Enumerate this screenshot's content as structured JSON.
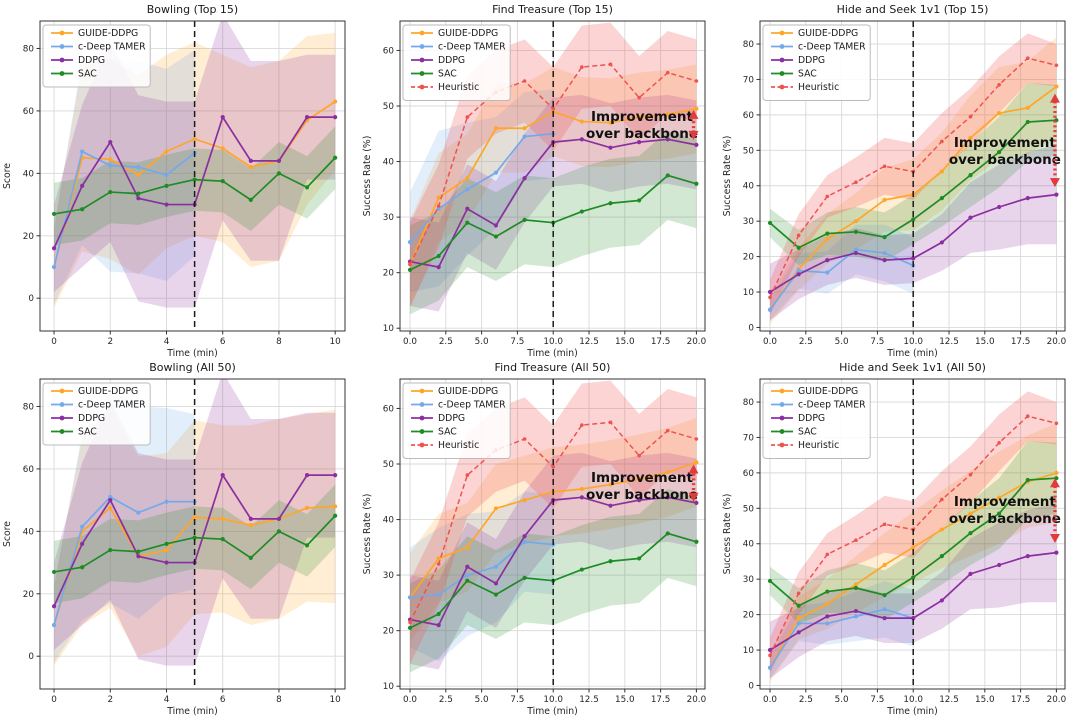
{
  "figure": {
    "background": "#ffffff",
    "palette": {
      "GUIDE-DDPG": "#FFA629",
      "c-Deep TAMER": "#74A9EC",
      "DDPG": "#8B2FA0",
      "SAC": "#1E8B25",
      "Heuristic": "#EF5350"
    },
    "grid_color": "#d9d9d9",
    "spine_color": "#333333",
    "text_color": "#262626",
    "vline_color": "#1a1a1a",
    "annotation_arrow_color": "#E23B3B",
    "annotation_text_color": "#111111"
  },
  "chart_data": [
    {
      "type": "line",
      "title": "Bowling (Top 15)",
      "xlabel": "Time (min)",
      "ylabel": "Score",
      "xlim": [
        -0.5,
        10.35
      ],
      "ylim": [
        -10.5,
        88.8
      ],
      "xticks": [
        0,
        2,
        4,
        6,
        8,
        10
      ],
      "xtick_labels": [
        "0",
        "2",
        "4",
        "6",
        "8",
        "10"
      ],
      "yticks": [
        0,
        20,
        40,
        60,
        80
      ],
      "grid": true,
      "legend_position": "upper-left",
      "vline_x": 5,
      "x": [
        0,
        1,
        2,
        3,
        4,
        5,
        6,
        7,
        8,
        9,
        10
      ],
      "series": [
        {
          "name": "GUIDE-DDPG",
          "color": "#FFA629",
          "dash": false,
          "values": [
            10,
            45,
            44.5,
            39.5,
            47,
            51,
            48,
            42,
            44,
            57,
            63
          ],
          "band": [
            13,
            30,
            32,
            32,
            31,
            31,
            30,
            32,
            32,
            27,
            22
          ]
        },
        {
          "name": "c-Deep TAMER",
          "color": "#74A9EC",
          "dash": false,
          "values": [
            10,
            47,
            42.5,
            42,
            39.5,
            46.5
          ],
          "band": [
            12,
            30,
            34,
            34,
            34,
            33
          ]
        },
        {
          "name": "DDPG",
          "color": "#8B2FA0",
          "dash": false,
          "values": [
            16,
            36,
            50,
            32,
            30,
            30,
            58,
            44,
            44,
            58,
            58
          ],
          "band": [
            14,
            26,
            32,
            33,
            33,
            33,
            33,
            32,
            32,
            20,
            20
          ]
        },
        {
          "name": "SAC",
          "color": "#1E8B25",
          "dash": false,
          "values": [
            27,
            28.5,
            34,
            33.5,
            36,
            38,
            37.5,
            31.5,
            40,
            35.5,
            45
          ],
          "band": 10
        }
      ],
      "annotation": null
    },
    {
      "type": "line",
      "title": "Find Treasure (Top 15)",
      "xlabel": "Time (min)",
      "ylabel": "Success Rate (%)",
      "xlim": [
        -0.7,
        20.6
      ],
      "ylim": [
        9.5,
        65.3
      ],
      "xticks": [
        0,
        2.5,
        5,
        7.5,
        10,
        12.5,
        15,
        17.5,
        20
      ],
      "xtick_labels": [
        "0.0",
        "2.5",
        "5.0",
        "7.5",
        "10.0",
        "12.5",
        "15.0",
        "17.5",
        "20.0"
      ],
      "yticks": [
        10,
        20,
        30,
        40,
        50,
        60
      ],
      "grid": true,
      "legend_position": "upper-left",
      "vline_x": 10,
      "x": [
        0,
        2,
        4,
        6,
        8,
        10,
        12,
        14,
        16,
        18,
        20
      ],
      "series": [
        {
          "name": "GUIDE-DDPG",
          "color": "#FFA629",
          "dash": false,
          "values": [
            21.5,
            33.5,
            37,
            46,
            46,
            49,
            47.2,
            47,
            48,
            48.5,
            49.5
          ],
          "band": 8
        },
        {
          "name": "c-Deep TAMER",
          "color": "#74A9EC",
          "dash": false,
          "values": [
            25.5,
            31.5,
            35,
            38,
            44.5,
            45
          ],
          "band": [
            9,
            14,
            12,
            10,
            8,
            8
          ]
        },
        {
          "name": "DDPG",
          "color": "#8B2FA0",
          "dash": false,
          "values": [
            22,
            21,
            31.5,
            28.5,
            37,
            43.5,
            44,
            42.5,
            43.5,
            44,
            43
          ],
          "band": 8
        },
        {
          "name": "SAC",
          "color": "#1E8B25",
          "dash": false,
          "values": [
            20.5,
            23,
            29,
            26.5,
            29.5,
            29,
            31,
            32.5,
            33,
            37.5,
            36
          ],
          "band": 8
        },
        {
          "name": "Heuristic",
          "color": "#EF5350",
          "dash": true,
          "values": [
            21.5,
            32,
            48,
            52.5,
            54.5,
            49.5,
            57,
            57.5,
            51.5,
            56,
            54.5
          ],
          "band": 7.5,
          "band_opacity": 0.25
        }
      ],
      "annotation": {
        "lines": [
          "Improvement",
          "over backbone"
        ],
        "text_x": 16.2,
        "text_y": 47.3,
        "arrow_x": 19.8,
        "arrow_y_low": 43.9,
        "arrow_y_high": 49.3
      }
    },
    {
      "type": "line",
      "title": "Hide and Seek 1v1 (Top 15)",
      "xlabel": "Time (min)",
      "ylabel": "Success Rate (%)",
      "xlim": [
        -0.7,
        20.6
      ],
      "ylim": [
        -1,
        86.5
      ],
      "xticks": [
        0,
        2.5,
        5,
        7.5,
        10,
        12.5,
        15,
        17.5,
        20
      ],
      "xtick_labels": [
        "0.0",
        "2.5",
        "5.0",
        "7.5",
        "10.0",
        "12.5",
        "15.0",
        "17.5",
        "20.0"
      ],
      "yticks": [
        0,
        10,
        20,
        30,
        40,
        50,
        60,
        70,
        80
      ],
      "grid": true,
      "legend_position": "upper-left",
      "vline_x": 10,
      "x": [
        0,
        2,
        4,
        6,
        8,
        10,
        12,
        14,
        16,
        18,
        20
      ],
      "series": [
        {
          "name": "GUIDE-DDPG",
          "color": "#FFA629",
          "dash": false,
          "values": [
            5,
            16.5,
            25,
            30,
            36,
            37.5,
            44,
            53.5,
            60.5,
            62,
            68
          ],
          "band": [
            4,
            6,
            7,
            8,
            9,
            10,
            11,
            12,
            13,
            13,
            14
          ]
        },
        {
          "name": "c-Deep TAMER",
          "color": "#74A9EC",
          "dash": false,
          "values": [
            5,
            16,
            15.5,
            22,
            21,
            17.5
          ],
          "band": [
            3,
            5,
            6,
            7,
            8,
            8
          ]
        },
        {
          "name": "DDPG",
          "color": "#8B2FA0",
          "dash": false,
          "values": [
            10,
            15,
            19,
            21,
            19,
            19.5,
            24,
            31,
            34,
            36.5,
            37.5
          ],
          "band": [
            8,
            7,
            7,
            7,
            7,
            7,
            8,
            10,
            12,
            13,
            14
          ]
        },
        {
          "name": "SAC",
          "color": "#1E8B25",
          "dash": false,
          "values": [
            29.5,
            22.5,
            26.5,
            27,
            25.5,
            30.5,
            36.5,
            43,
            49.5,
            58,
            58.5
          ],
          "band": [
            4,
            5,
            6,
            7,
            7,
            7,
            8,
            9,
            10,
            11,
            10
          ]
        },
        {
          "name": "Heuristic",
          "color": "#EF5350",
          "dash": true,
          "values": [
            8.5,
            26,
            37,
            41,
            45.5,
            44,
            52.5,
            59.5,
            68.5,
            76,
            74
          ],
          "band": [
            5,
            6,
            6,
            7,
            8,
            8,
            8,
            8,
            8,
            7,
            6
          ],
          "band_opacity": 0.25
        }
      ],
      "annotation": {
        "lines": [
          "Improvement",
          "over backbone"
        ],
        "text_x": 16.4,
        "text_y": 50.9,
        "arrow_x": 19.9,
        "arrow_y_low": 39.6,
        "arrow_y_high": 66
      }
    },
    {
      "type": "line",
      "title": "Bowling (All 50)",
      "xlabel": "Time (min)",
      "ylabel": "Score",
      "xlim": [
        -0.5,
        10.35
      ],
      "ylim": [
        -10.5,
        88.8
      ],
      "xticks": [
        0,
        2,
        4,
        6,
        8,
        10
      ],
      "xtick_labels": [
        "0",
        "2",
        "4",
        "6",
        "8",
        "10"
      ],
      "yticks": [
        0,
        20,
        40,
        60,
        80
      ],
      "grid": true,
      "legend_position": "upper-left",
      "vline_x": 5,
      "x": [
        0,
        1,
        2,
        3,
        4,
        5,
        6,
        7,
        8,
        9,
        10
      ],
      "series": [
        {
          "name": "GUIDE-DDPG",
          "color": "#FFA629",
          "dash": false,
          "values": [
            10,
            40,
            47.5,
            32,
            34,
            44.5,
            44,
            42,
            44,
            47.5,
            48
          ],
          "band": [
            13,
            30,
            32,
            32,
            31,
            31,
            30,
            32,
            32,
            30,
            31
          ]
        },
        {
          "name": "c-Deep TAMER",
          "color": "#74A9EC",
          "dash": false,
          "values": [
            10,
            41.5,
            51,
            46,
            49.5,
            49.5
          ],
          "band": [
            12,
            30,
            34,
            34,
            30,
            28
          ]
        },
        {
          "name": "DDPG",
          "color": "#8B2FA0",
          "dash": false,
          "values": [
            16,
            36,
            50,
            32,
            30,
            30,
            58,
            44,
            44,
            58,
            58
          ],
          "band": [
            14,
            26,
            32,
            33,
            33,
            33,
            33,
            32,
            32,
            20,
            20
          ]
        },
        {
          "name": "SAC",
          "color": "#1E8B25",
          "dash": false,
          "values": [
            27,
            28.5,
            34,
            33.5,
            36,
            38,
            37.5,
            31.5,
            40,
            35.5,
            45
          ],
          "band": 10
        }
      ],
      "annotation": null
    },
    {
      "type": "line",
      "title": "Find Treasure (All 50)",
      "xlabel": "Time (min)",
      "ylabel": "Success Rate (%)",
      "xlim": [
        -0.7,
        20.6
      ],
      "ylim": [
        9.5,
        65.3
      ],
      "xticks": [
        0,
        2.5,
        5,
        7.5,
        10,
        12.5,
        15,
        17.5,
        20
      ],
      "xtick_labels": [
        "0.0",
        "2.5",
        "5.0",
        "7.5",
        "10.0",
        "12.5",
        "15.0",
        "17.5",
        "20.0"
      ],
      "yticks": [
        10,
        20,
        30,
        40,
        50,
        60
      ],
      "grid": true,
      "legend_position": "upper-left",
      "vline_x": 10,
      "x": [
        0,
        2,
        4,
        6,
        8,
        10,
        12,
        14,
        16,
        18,
        20
      ],
      "series": [
        {
          "name": "GUIDE-DDPG",
          "color": "#FFA629",
          "dash": false,
          "values": [
            26,
            33,
            35,
            42,
            43.5,
            45,
            45.5,
            46.3,
            47.3,
            48.5,
            50.3
          ],
          "band": 8
        },
        {
          "name": "c-Deep TAMER",
          "color": "#74A9EC",
          "dash": false,
          "values": [
            26,
            26.5,
            30,
            31.5,
            36,
            35.5
          ],
          "band": [
            9,
            12,
            11,
            10,
            9,
            9
          ]
        },
        {
          "name": "DDPG",
          "color": "#8B2FA0",
          "dash": false,
          "values": [
            22,
            21,
            31.5,
            28.5,
            37,
            43.5,
            44,
            42.5,
            43.5,
            44,
            43
          ],
          "band": 8
        },
        {
          "name": "SAC",
          "color": "#1E8B25",
          "dash": false,
          "values": [
            20.5,
            23,
            29,
            26.5,
            29.5,
            29,
            31,
            32.5,
            33,
            37.5,
            36
          ],
          "band": 8
        },
        {
          "name": "Heuristic",
          "color": "#EF5350",
          "dash": true,
          "values": [
            21.5,
            32,
            48,
            52.5,
            54.5,
            49.5,
            57,
            57.5,
            51.5,
            56,
            54.5
          ],
          "band": 7.5,
          "band_opacity": 0.25
        }
      ],
      "annotation": {
        "lines": [
          "Improvement",
          "over backbone"
        ],
        "text_x": 16.2,
        "text_y": 46.8,
        "arrow_x": 19.8,
        "arrow_y_low": 43.2,
        "arrow_y_high": 49.9
      }
    },
    {
      "type": "line",
      "title": "Hide and Seek 1v1 (All 50)",
      "xlabel": "Time (min)",
      "ylabel": "Success Rate (%)",
      "xlim": [
        -0.7,
        20.6
      ],
      "ylim": [
        -1,
        86.5
      ],
      "xticks": [
        0,
        2.5,
        5,
        7.5,
        10,
        12.5,
        15,
        17.5,
        20
      ],
      "xtick_labels": [
        "0.0",
        "2.5",
        "5.0",
        "7.5",
        "10.0",
        "12.5",
        "15.0",
        "17.5",
        "20.0"
      ],
      "yticks": [
        0,
        10,
        20,
        30,
        40,
        50,
        60,
        70,
        80
      ],
      "grid": true,
      "legend_position": "upper-left",
      "vline_x": 10,
      "x": [
        0,
        2,
        4,
        6,
        8,
        10,
        12,
        14,
        16,
        18,
        20
      ],
      "series": [
        {
          "name": "GUIDE-DDPG",
          "color": "#FFA629",
          "dash": false,
          "values": [
            5,
            19,
            23,
            28.5,
            34,
            39,
            44,
            48.5,
            53,
            57.5,
            60
          ],
          "band": [
            4,
            6,
            7,
            8,
            9,
            10,
            11,
            12,
            13,
            13,
            14
          ]
        },
        {
          "name": "c-Deep TAMER",
          "color": "#74A9EC",
          "dash": false,
          "values": [
            5,
            17.5,
            17.5,
            19.5,
            21.5,
            19
          ],
          "band": [
            3,
            5,
            6,
            7,
            8,
            8
          ]
        },
        {
          "name": "DDPG",
          "color": "#8B2FA0",
          "dash": false,
          "values": [
            10,
            15,
            19.5,
            21,
            19,
            19,
            24,
            31.5,
            34,
            36.5,
            37.5
          ],
          "band": [
            8,
            7,
            7,
            7,
            7,
            7,
            8,
            10,
            12,
            13,
            14
          ]
        },
        {
          "name": "SAC",
          "color": "#1E8B25",
          "dash": false,
          "values": [
            29.5,
            22.5,
            26.5,
            27.5,
            25.5,
            30.5,
            36.5,
            43,
            48.5,
            58,
            58.5
          ],
          "band": [
            4,
            5,
            6,
            7,
            7,
            7,
            8,
            9,
            10,
            11,
            10
          ]
        },
        {
          "name": "Heuristic",
          "color": "#EF5350",
          "dash": true,
          "values": [
            8.5,
            26,
            37,
            41,
            45.5,
            44,
            52.5,
            59.5,
            68.5,
            76,
            74
          ],
          "band": [
            5,
            6,
            6,
            7,
            8,
            8,
            8,
            8,
            8,
            7,
            6
          ],
          "band_opacity": 0.25
        }
      ],
      "annotation": {
        "lines": [
          "Improvement",
          "over backbone"
        ],
        "text_x": 16.4,
        "text_y": 50.7,
        "arrow_x": 19.9,
        "arrow_y_low": 40.2,
        "arrow_y_high": 58.5
      }
    }
  ]
}
